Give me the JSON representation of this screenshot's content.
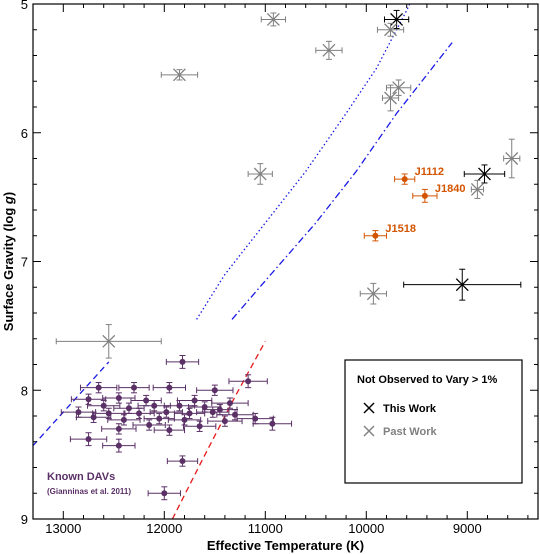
{
  "chart_data": {
    "type": "scatter",
    "xlabel": "Effective Temperature (K)",
    "ylabel_main": "Surface Gravity (log ",
    "ylabel_italic": "g",
    "ylabel_end": ")",
    "xlim": [
      13300,
      8300
    ],
    "ylim": [
      5,
      9
    ],
    "x_ticks": [
      13000,
      12000,
      11000,
      10000,
      9000
    ],
    "y_ticks": [
      5,
      6,
      7,
      8,
      9
    ],
    "grid": false,
    "legend": {
      "position": "bottom-right",
      "title": "Not Observed to Vary > 1%",
      "entries": [
        {
          "label": "This Work",
          "color": "#000000",
          "marker": "x"
        },
        {
          "label": "Past Work",
          "color": "#808080",
          "marker": "x"
        }
      ]
    },
    "colors": {
      "this_work": "#000000",
      "past_work": "#808080",
      "variable": "#d35400",
      "known_davs": "#5a3066",
      "blue_edge": "#1a1ae6",
      "red_edge": "#e61a1a"
    },
    "series": [
      {
        "name": "This Work",
        "marker": "x",
        "color": "#000000",
        "points": [
          {
            "x": 9700,
            "y": 5.12,
            "xerr": 120,
            "yerr": 0.07
          },
          {
            "x": 8830,
            "y": 6.32,
            "xerr": 200,
            "yerr": 0.07
          },
          {
            "x": 9050,
            "y": 7.18,
            "xerr": 580,
            "yerr": 0.12
          }
        ]
      },
      {
        "name": "Past Work",
        "marker": "x",
        "color": "#808080",
        "points": [
          {
            "x": 10920,
            "y": 5.12,
            "xerr": 120,
            "yerr": 0.05
          },
          {
            "x": 9760,
            "y": 5.2,
            "xerr": 130,
            "yerr": 0.05
          },
          {
            "x": 10370,
            "y": 5.36,
            "xerr": 130,
            "yerr": 0.07
          },
          {
            "x": 11850,
            "y": 5.55,
            "xerr": 180,
            "yerr": 0.04
          },
          {
            "x": 9680,
            "y": 5.65,
            "xerr": 120,
            "yerr": 0.06
          },
          {
            "x": 9760,
            "y": 5.73,
            "xerr": 80,
            "yerr": 0.1
          },
          {
            "x": 11050,
            "y": 6.32,
            "xerr": 120,
            "yerr": 0.08
          },
          {
            "x": 8900,
            "y": 6.44,
            "xerr": 60,
            "yerr": 0.07
          },
          {
            "x": 8560,
            "y": 6.2,
            "xerr": 80,
            "yerr": 0.15
          },
          {
            "x": 9930,
            "y": 7.25,
            "xerr": 130,
            "yerr": 0.08
          },
          {
            "x": 12550,
            "y": 7.62,
            "xerr": 520,
            "yerr": 0.13
          }
        ]
      },
      {
        "name": "Variable",
        "marker": "o",
        "color": "#d35400",
        "points": [
          {
            "x": 9620,
            "y": 6.36,
            "xerr": 100,
            "yerr": 0.04,
            "label": "J1112"
          },
          {
            "x": 9420,
            "y": 6.49,
            "xerr": 120,
            "yerr": 0.05,
            "label": "J1840"
          },
          {
            "x": 9910,
            "y": 6.8,
            "xerr": 110,
            "yerr": 0.04,
            "label": "J1518"
          }
        ]
      },
      {
        "name": "Known DAVs",
        "marker": "o",
        "color": "#5a3066",
        "points": [
          {
            "x": 11820,
            "y": 7.78,
            "xerr": 160,
            "yerr": 0.05
          },
          {
            "x": 12650,
            "y": 7.98,
            "xerr": 180,
            "yerr": 0.04
          },
          {
            "x": 12300,
            "y": 7.98,
            "xerr": 150,
            "yerr": 0.04
          },
          {
            "x": 11950,
            "y": 7.98,
            "xerr": 160,
            "yerr": 0.04
          },
          {
            "x": 11500,
            "y": 8.0,
            "xerr": 180,
            "yerr": 0.04
          },
          {
            "x": 11170,
            "y": 7.93,
            "xerr": 190,
            "yerr": 0.05
          },
          {
            "x": 12750,
            "y": 8.07,
            "xerr": 170,
            "yerr": 0.04
          },
          {
            "x": 12450,
            "y": 8.06,
            "xerr": 160,
            "yerr": 0.04
          },
          {
            "x": 12180,
            "y": 8.08,
            "xerr": 150,
            "yerr": 0.04
          },
          {
            "x": 11700,
            "y": 8.08,
            "xerr": 170,
            "yerr": 0.04
          },
          {
            "x": 11350,
            "y": 8.1,
            "xerr": 180,
            "yerr": 0.04
          },
          {
            "x": 12600,
            "y": 8.12,
            "xerr": 160,
            "yerr": 0.04
          },
          {
            "x": 12350,
            "y": 8.14,
            "xerr": 150,
            "yerr": 0.04
          },
          {
            "x": 12100,
            "y": 8.12,
            "xerr": 160,
            "yerr": 0.04
          },
          {
            "x": 11850,
            "y": 8.12,
            "xerr": 150,
            "yerr": 0.04
          },
          {
            "x": 11600,
            "y": 8.13,
            "xerr": 160,
            "yerr": 0.04
          },
          {
            "x": 11450,
            "y": 8.15,
            "xerr": 170,
            "yerr": 0.04
          },
          {
            "x": 12850,
            "y": 8.17,
            "xerr": 170,
            "yerr": 0.04
          },
          {
            "x": 12550,
            "y": 8.18,
            "xerr": 160,
            "yerr": 0.04
          },
          {
            "x": 12250,
            "y": 8.18,
            "xerr": 150,
            "yerr": 0.04
          },
          {
            "x": 11980,
            "y": 8.17,
            "xerr": 160,
            "yerr": 0.04
          },
          {
            "x": 11750,
            "y": 8.18,
            "xerr": 150,
            "yerr": 0.04
          },
          {
            "x": 11520,
            "y": 8.17,
            "xerr": 160,
            "yerr": 0.04
          },
          {
            "x": 11300,
            "y": 8.19,
            "xerr": 180,
            "yerr": 0.04
          },
          {
            "x": 11100,
            "y": 8.22,
            "xerr": 180,
            "yerr": 0.04
          },
          {
            "x": 12700,
            "y": 8.21,
            "xerr": 170,
            "yerr": 0.04
          },
          {
            "x": 12400,
            "y": 8.23,
            "xerr": 160,
            "yerr": 0.04
          },
          {
            "x": 12050,
            "y": 8.22,
            "xerr": 150,
            "yerr": 0.04
          },
          {
            "x": 11800,
            "y": 8.23,
            "xerr": 160,
            "yerr": 0.04
          },
          {
            "x": 11400,
            "y": 8.24,
            "xerr": 170,
            "yerr": 0.04
          },
          {
            "x": 10930,
            "y": 8.26,
            "xerr": 190,
            "yerr": 0.05
          },
          {
            "x": 12150,
            "y": 8.27,
            "xerr": 160,
            "yerr": 0.04
          },
          {
            "x": 11650,
            "y": 8.28,
            "xerr": 160,
            "yerr": 0.04
          },
          {
            "x": 12450,
            "y": 8.3,
            "xerr": 170,
            "yerr": 0.04
          },
          {
            "x": 11950,
            "y": 8.31,
            "xerr": 150,
            "yerr": 0.04
          },
          {
            "x": 12750,
            "y": 8.38,
            "xerr": 180,
            "yerr": 0.05
          },
          {
            "x": 12450,
            "y": 8.43,
            "xerr": 160,
            "yerr": 0.05
          },
          {
            "x": 11820,
            "y": 8.55,
            "xerr": 150,
            "yerr": 0.04
          },
          {
            "x": 12000,
            "y": 8.8,
            "xerr": 160,
            "yerr": 0.05
          }
        ]
      }
    ],
    "lines": [
      {
        "name": "dotted",
        "style": "dotted",
        "color": "#1a1ae6",
        "points": [
          [
            11680,
            7.45
          ],
          [
            11400,
            7.1
          ],
          [
            11000,
            6.7
          ],
          [
            10600,
            6.3
          ],
          [
            10200,
            5.85
          ],
          [
            9900,
            5.5
          ],
          [
            9600,
            5.05
          ],
          [
            9570,
            5.0
          ]
        ]
      },
      {
        "name": "dash-dot",
        "style": "dashdot",
        "color": "#1a1ae6",
        "points": [
          [
            11330,
            7.45
          ],
          [
            11000,
            7.15
          ],
          [
            10500,
            6.7
          ],
          [
            10100,
            6.3
          ],
          [
            9700,
            5.85
          ],
          [
            9400,
            5.55
          ],
          [
            9150,
            5.3
          ]
        ]
      },
      {
        "name": "blue-edge",
        "style": "dashed",
        "color": "#1a1ae6",
        "points": [
          [
            13300,
            8.43
          ],
          [
            12550,
            7.78
          ]
        ]
      },
      {
        "name": "red-edge",
        "style": "dashed",
        "color": "#e61a1a",
        "points": [
          [
            11920,
            9.0
          ],
          [
            11630,
            8.55
          ],
          [
            11300,
            8.05
          ],
          [
            11000,
            7.62
          ]
        ]
      }
    ],
    "annotations": [
      {
        "text": "Known DAVs",
        "color": "#5a3066"
      },
      {
        "text": "(Gianninas et al. 2011)",
        "color": "#5a3066"
      }
    ]
  }
}
